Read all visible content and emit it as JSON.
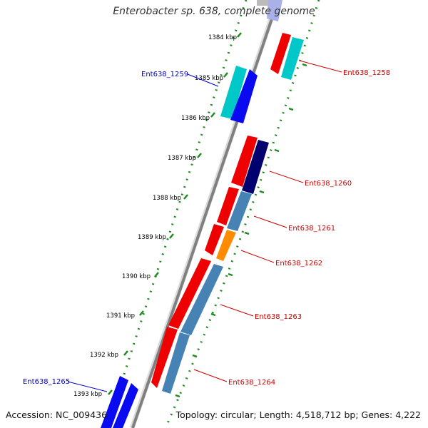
{
  "title": "Enterobacter sp. 638, complete genome",
  "footer": {
    "accession": "Accession: NC_009436",
    "topology": "Topology: circular; Length: 4,518,712 bp; Genes: 4,222"
  },
  "colors": {
    "backbone": "#8a8a8a",
    "scale_dots": "#1f8a1f",
    "forward_label": "#0000cc",
    "reverse_label": "#cc0000"
  },
  "scale_ticks": [
    {
      "label": "1384 kbp"
    },
    {
      "label": "1385 kbp"
    },
    {
      "label": "1386 kbp"
    },
    {
      "label": "1387 kbp"
    },
    {
      "label": "1388 kbp"
    },
    {
      "label": "1389 kbp"
    },
    {
      "label": "1390 kbp"
    },
    {
      "label": "1391 kbp"
    },
    {
      "label": "1392 kbp"
    },
    {
      "label": "1393 kbp"
    }
  ],
  "gene_labels": [
    {
      "text": "Ent638_1258",
      "strand": "reverse"
    },
    {
      "text": "Ent638_1259",
      "strand": "forward"
    },
    {
      "text": "Ent638_1260",
      "strand": "reverse"
    },
    {
      "text": "Ent638_1261",
      "strand": "reverse"
    },
    {
      "text": "Ent638_1262",
      "strand": "reverse"
    },
    {
      "text": "Ent638_1263",
      "strand": "reverse"
    },
    {
      "text": "Ent638_1264",
      "strand": "reverse"
    },
    {
      "text": "Ent638_1265",
      "strand": "forward"
    }
  ],
  "feature_colors": [
    "red",
    "cyan",
    "blue",
    "navy",
    "steelblue",
    "orange"
  ]
}
